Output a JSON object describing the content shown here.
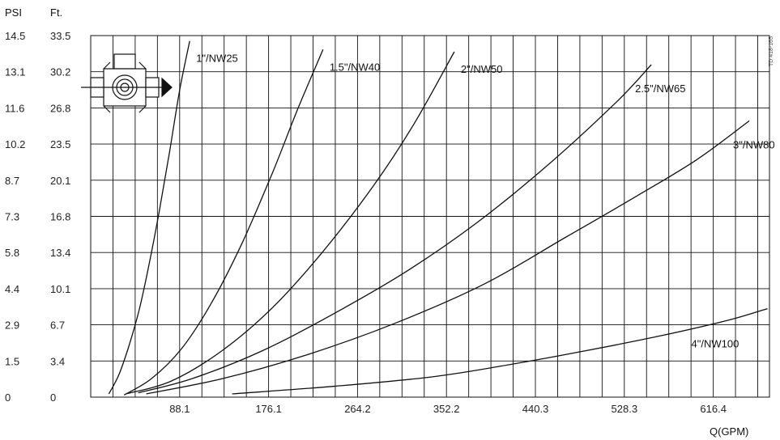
{
  "chart_data": {
    "type": "line",
    "x_axis_title": "Q(GPM)",
    "left_axis_title": "PSI",
    "right_axis_title": "Ft.",
    "corner_code": "TD 418-165",
    "xlim": [
      0,
      672
    ],
    "ylim_ft": [
      0,
      33.5
    ],
    "grid": true,
    "x_ticks": [
      "88.1",
      "176.1",
      "264.2",
      "352.2",
      "440.3",
      "528.3",
      "616.4"
    ],
    "x_tick_values": [
      88.1,
      176.1,
      264.2,
      352.2,
      440.3,
      528.3,
      616.4
    ],
    "y_ticks_psi": [
      "0",
      "1.5",
      "2.9",
      "4.4",
      "5.8",
      "7.3",
      "8.7",
      "10.2",
      "11.6",
      "13.1",
      "14.5"
    ],
    "y_ticks_ft": [
      "0",
      "3.4",
      "6.7",
      "10.1",
      "13.4",
      "16.8",
      "20.1",
      "23.5",
      "26.8",
      "30.2",
      "33.5"
    ],
    "y_tick_values_ft": [
      0,
      3.35,
      6.7,
      10.05,
      13.4,
      16.75,
      20.1,
      23.45,
      26.8,
      30.15,
      33.5
    ],
    "series": [
      {
        "name": "1\"/NW25",
        "x": [
          18,
          28,
          38,
          48,
          58,
          68,
          78,
          88,
          98
        ],
        "y": [
          0.3,
          2.1,
          4.8,
          8.1,
          12.4,
          17.3,
          22.7,
          28.4,
          33.0
        ]
      },
      {
        "name": "1.5\"/NW40",
        "x": [
          33,
          60,
          90,
          120,
          150,
          180,
          205,
          230
        ],
        "y": [
          0.2,
          1.7,
          4.5,
          8.8,
          14.3,
          20.8,
          26.7,
          32.2
        ]
      },
      {
        "name": "2\"/NW50",
        "x": [
          35,
          80,
          130,
          180,
          230,
          280,
          320,
          360
        ],
        "y": [
          0.3,
          1.5,
          4.3,
          8.3,
          13.5,
          19.6,
          25.3,
          32.0
        ]
      },
      {
        "name": "2.5\"/NW65",
        "x": [
          47,
          100,
          170,
          240,
          310,
          380,
          450,
          520,
          555
        ],
        "y": [
          0.4,
          1.7,
          4.3,
          7.7,
          11.5,
          16.0,
          21.3,
          27.3,
          30.8
        ]
      },
      {
        "name": "3\"/NW80",
        "x": [
          55,
          130,
          210,
          300,
          390,
          470,
          540,
          600,
          652
        ],
        "y": [
          0.3,
          1.7,
          3.8,
          6.8,
          10.5,
          14.8,
          18.6,
          22.0,
          25.6
        ]
      },
      {
        "name": "4\"/NW100",
        "x": [
          140,
          240,
          340,
          420,
          490,
          560,
          630,
          670
        ],
        "y": [
          0.3,
          1.0,
          1.9,
          3.1,
          4.3,
          5.6,
          7.1,
          8.2
        ]
      }
    ],
    "series_label_positions": [
      "top-end",
      "top-end",
      "top-end",
      "right-below-end",
      "right-below-end",
      "right-below-end"
    ]
  }
}
